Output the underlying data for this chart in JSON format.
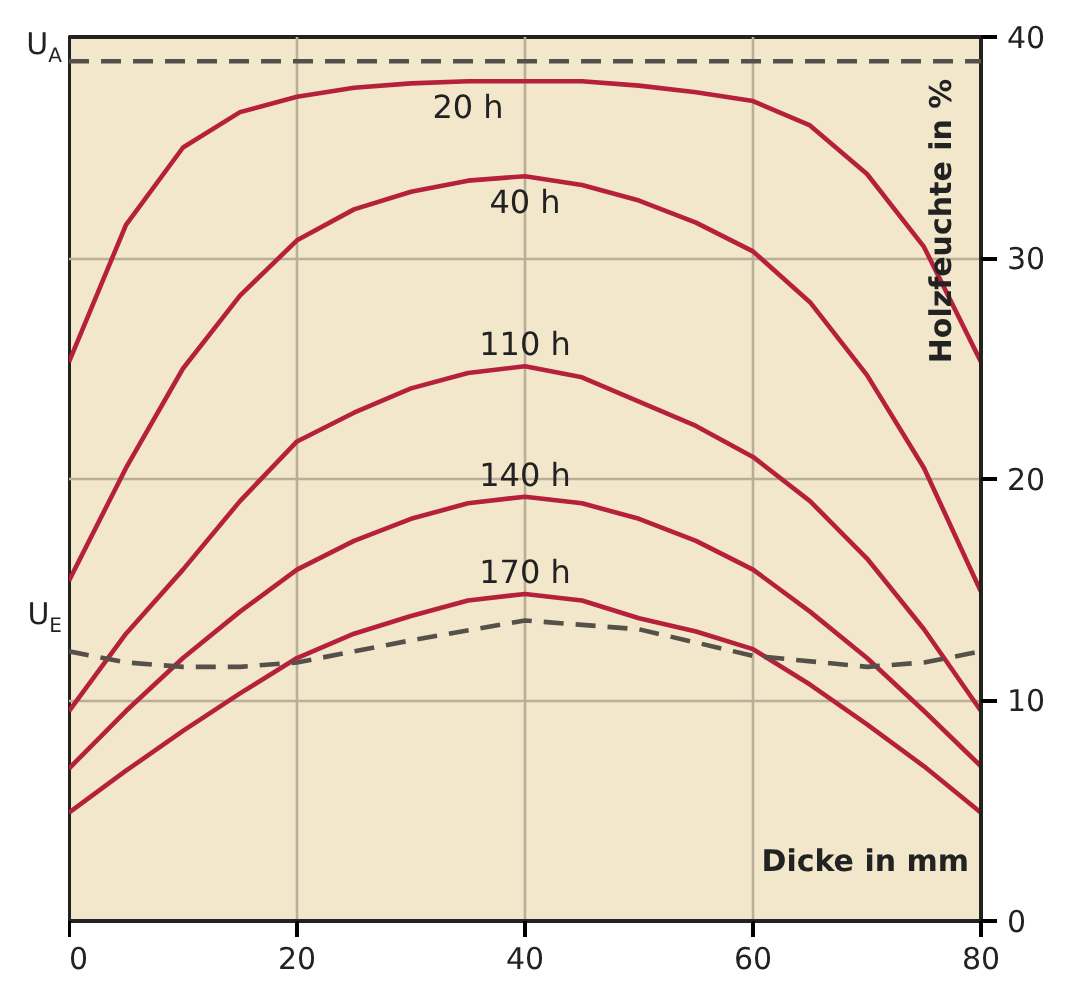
{
  "chart_data": {
    "type": "line",
    "xlabel": "Dicke in mm",
    "ylabel": "Holzfeuchte in %",
    "xlim": [
      0,
      80
    ],
    "ylim": [
      0,
      40
    ],
    "xticks": [
      0,
      20,
      40,
      60,
      80
    ],
    "yticks": [
      0,
      10,
      20,
      30,
      40
    ],
    "grid": true,
    "line_style": "solid",
    "series": [
      {
        "name": "20 h",
        "color": "#b5213a",
        "x": [
          0,
          5,
          10,
          15,
          20,
          25,
          30,
          35,
          40,
          45,
          50,
          55,
          60,
          65,
          70,
          75,
          80
        ],
        "values": [
          25.3,
          31.5,
          35.0,
          36.6,
          37.3,
          37.7,
          37.9,
          38.0,
          38.0,
          38.0,
          37.8,
          37.5,
          37.1,
          36.0,
          33.8,
          30.5,
          25.3
        ]
      },
      {
        "name": "40 h",
        "color": "#b5213a",
        "x": [
          0,
          5,
          10,
          15,
          20,
          25,
          30,
          35,
          40,
          45,
          50,
          55,
          60,
          65,
          70,
          75,
          80
        ],
        "values": [
          15.4,
          20.5,
          25.0,
          28.3,
          30.8,
          32.2,
          33.0,
          33.5,
          33.7,
          33.3,
          32.6,
          31.6,
          30.3,
          28.0,
          24.7,
          20.5,
          14.9
        ]
      },
      {
        "name": "110 h",
        "color": "#b5213a",
        "x": [
          0,
          5,
          10,
          15,
          20,
          25,
          30,
          35,
          40,
          45,
          50,
          55,
          60,
          65,
          70,
          75,
          80
        ],
        "values": [
          9.5,
          13.0,
          15.9,
          19.0,
          21.7,
          23.0,
          24.1,
          24.8,
          25.1,
          24.6,
          23.5,
          22.4,
          21.0,
          19.0,
          16.4,
          13.2,
          9.5
        ]
      },
      {
        "name": "140 h",
        "color": "#b5213a",
        "x": [
          0,
          5,
          10,
          15,
          20,
          25,
          30,
          35,
          40,
          45,
          50,
          55,
          60,
          65,
          70,
          75,
          80
        ],
        "values": [
          6.9,
          9.5,
          11.9,
          14.0,
          15.9,
          17.2,
          18.2,
          18.9,
          19.2,
          18.9,
          18.2,
          17.2,
          15.9,
          14.0,
          11.9,
          9.5,
          7.0
        ]
      },
      {
        "name": "170 h",
        "color": "#b5213a",
        "x": [
          0,
          5,
          10,
          15,
          20,
          25,
          30,
          35,
          40,
          45,
          50,
          55,
          60,
          65,
          70,
          75,
          80
        ],
        "values": [
          4.9,
          6.8,
          8.6,
          10.3,
          11.9,
          13.0,
          13.8,
          14.5,
          14.8,
          14.5,
          13.7,
          13.1,
          12.3,
          10.7,
          8.9,
          7.0,
          4.9
        ]
      },
      {
        "name": "U$_{E}$",
        "color": "#55504a",
        "line_style": "dashed",
        "x": [
          0,
          5,
          10,
          15,
          20,
          30,
          40,
          50,
          60,
          70,
          75,
          80
        ],
        "values": [
          12.2,
          11.7,
          11.5,
          11.5,
          11.7,
          12.7,
          13.6,
          13.2,
          12.0,
          11.5,
          11.7,
          12.2
        ]
      }
    ],
    "ref_lines": [
      {
        "axis": "y",
        "value": 38.9,
        "label": "U$_{A}$",
        "color": "#55504a",
        "line_style": "dashed"
      }
    ]
  }
}
